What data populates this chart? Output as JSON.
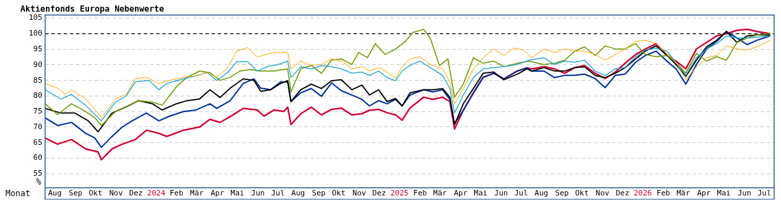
{
  "chart_data": {
    "type": "line",
    "title": "Aktienfonds Europa Nebenwerte",
    "xlabel": "Monat",
    "ylabel": "%",
    "ylim": [
      50.5,
      106
    ],
    "yticks": [
      55,
      60,
      65,
      70,
      75,
      80,
      85,
      90,
      95,
      100,
      105
    ],
    "xlim": [
      "2023-08-01",
      "2026-07-31"
    ],
    "xticks": [
      {
        "value": "2023-08-16",
        "label": "Aug"
      },
      {
        "value": "2023-09-16",
        "label": "Sep"
      },
      {
        "value": "2023-10-16",
        "label": "Okt"
      },
      {
        "value": "2023-11-16",
        "label": "Nov"
      },
      {
        "value": "2023-12-16",
        "label": "Dez"
      },
      {
        "value": "2024-01-16",
        "label": "2024"
      },
      {
        "value": "2024-02-15",
        "label": "Feb"
      },
      {
        "value": "2024-03-16",
        "label": "Mär"
      },
      {
        "value": "2024-04-16",
        "label": "Apr"
      },
      {
        "value": "2024-05-16",
        "label": "Mai"
      },
      {
        "value": "2024-06-16",
        "label": "Jun"
      },
      {
        "value": "2024-07-16",
        "label": "Jul"
      },
      {
        "value": "2024-08-16",
        "label": "Aug"
      },
      {
        "value": "2024-09-16",
        "label": "Sep"
      },
      {
        "value": "2024-10-16",
        "label": "Okt"
      },
      {
        "value": "2024-11-16",
        "label": "Nov"
      },
      {
        "value": "2024-12-16",
        "label": "Dez"
      },
      {
        "value": "2025-01-16",
        "label": "2025"
      },
      {
        "value": "2025-02-15",
        "label": "Feb"
      },
      {
        "value": "2025-03-16",
        "label": "Mär"
      },
      {
        "value": "2025-04-16",
        "label": "Apr"
      },
      {
        "value": "2025-05-16",
        "label": "Mai"
      },
      {
        "value": "2025-06-16",
        "label": "Jun"
      },
      {
        "value": "2025-07-16",
        "label": "Jul"
      },
      {
        "value": "2025-08-16",
        "label": "Aug"
      },
      {
        "value": "2025-09-16",
        "label": "Sep"
      },
      {
        "value": "2025-10-16",
        "label": "Okt"
      },
      {
        "value": "2025-11-16",
        "label": "Nov"
      },
      {
        "value": "2025-12-16",
        "label": "Dez"
      },
      {
        "value": "2026-01-16",
        "label": "2026"
      },
      {
        "value": "2026-02-15",
        "label": "Feb"
      },
      {
        "value": "2026-03-16",
        "label": "Mär"
      },
      {
        "value": "2026-04-16",
        "label": "Apr"
      },
      {
        "value": "2026-05-16",
        "label": "Mai"
      },
      {
        "value": "2026-06-16",
        "label": "Jun"
      },
      {
        "value": "2026-07-16",
        "label": "Jul"
      }
    ],
    "grid": "y",
    "legend": false,
    "line_style": "solid",
    "ref_lines": [
      {
        "axis": "y",
        "value": 100,
        "color": "#000000",
        "line_style": "dashed"
      }
    ],
    "series": [
      {
        "color": "#ffa500",
        "x": [
          "2023-08-01",
          "2023-08-20",
          "2023-09-01",
          "2023-09-10",
          "2023-10-01",
          "2023-10-10",
          "2023-10-25",
          "2023-11-05",
          "2023-11-15",
          "2023-12-01",
          "2023-12-15",
          "2024-01-01",
          "2024-01-20",
          "2024-02-05",
          "2024-02-25",
          "2024-03-15",
          "2024-04-01",
          "2024-04-15",
          "2024-05-01",
          "2024-05-15",
          "2024-06-01",
          "2024-06-15",
          "2024-07-01",
          "2024-07-15",
          "2024-07-31",
          "2024-08-05",
          "2024-08-20",
          "2024-09-05",
          "2024-09-20",
          "2024-10-05",
          "2024-10-20",
          "2024-11-05",
          "2024-11-20",
          "2024-12-01",
          "2024-12-15",
          "2024-12-28",
          "2025-01-10",
          "2025-01-20",
          "2025-02-01",
          "2025-02-15",
          "2025-03-01",
          "2025-03-20",
          "2025-03-31",
          "2025-04-07",
          "2025-04-20",
          "2025-05-05",
          "2025-05-20",
          "2025-06-05",
          "2025-06-20",
          "2025-07-05",
          "2025-07-20",
          "2025-08-01",
          "2025-08-20",
          "2025-09-05",
          "2025-09-20",
          "2025-10-05",
          "2025-10-20",
          "2025-11-05",
          "2025-11-20",
          "2025-12-05",
          "2025-12-20",
          "2026-01-05",
          "2026-01-20",
          "2026-02-05",
          "2026-02-20",
          "2026-03-05",
          "2026-03-20",
          "2026-04-05",
          "2026-04-20",
          "2026-05-05",
          "2026-05-20",
          "2026-06-05",
          "2026-06-20",
          "2026-07-05",
          "2026-07-25"
        ],
        "values": [
          84,
          82.5,
          80.5,
          82,
          79,
          77,
          73,
          76,
          79,
          80.5,
          85.5,
          86,
          84,
          85,
          86,
          86.5,
          87.5,
          86,
          89,
          94.5,
          95.5,
          92.5,
          93.5,
          94,
          94,
          88.7,
          91.2,
          89.8,
          90.1,
          91.9,
          91.2,
          88.7,
          89.4,
          88,
          89.1,
          87.7,
          85.6,
          89.4,
          91.9,
          92.6,
          90.1,
          88.7,
          84.5,
          77.5,
          82.4,
          88.7,
          92.3,
          95.1,
          93,
          95.4,
          94.7,
          92.3,
          95.1,
          94,
          95.1,
          94.4,
          94.4,
          93.3,
          91.5,
          93.3,
          95.1,
          97.5,
          97.9,
          96.8,
          93.7,
          90.8,
          85.2,
          89.4,
          92.3,
          93,
          96.1,
          95.1,
          94.7,
          95.8,
          97.9
        ]
      },
      {
        "color": "#1a9fd0",
        "x": [
          "2023-08-01",
          "2023-08-25",
          "2023-09-10",
          "2023-10-01",
          "2023-10-25",
          "2023-11-15",
          "2023-12-01",
          "2023-12-15",
          "2024-01-05",
          "2024-01-20",
          "2024-02-01",
          "2024-02-25",
          "2024-03-15",
          "2024-04-01",
          "2024-04-15",
          "2024-05-01",
          "2024-05-15",
          "2024-06-01",
          "2024-06-15",
          "2024-07-01",
          "2024-07-15",
          "2024-07-31",
          "2024-08-05",
          "2024-08-20",
          "2024-09-05",
          "2024-09-20",
          "2024-10-05",
          "2024-10-20",
          "2024-11-05",
          "2024-11-20",
          "2024-12-01",
          "2024-12-15",
          "2024-12-28",
          "2025-01-10",
          "2025-01-20",
          "2025-02-01",
          "2025-02-15",
          "2025-03-01",
          "2025-03-20",
          "2025-03-31",
          "2025-04-07",
          "2025-04-20",
          "2025-05-05",
          "2025-05-20",
          "2025-06-05",
          "2025-06-20",
          "2025-07-10",
          "2025-07-28",
          "2025-08-20",
          "2025-09-05",
          "2025-09-20",
          "2025-10-05",
          "2025-10-20",
          "2025-11-05",
          "2025-11-20",
          "2025-12-05",
          "2025-12-20",
          "2026-01-05",
          "2026-01-20",
          "2026-02-05",
          "2026-02-20",
          "2026-03-05",
          "2026-03-20",
          "2026-04-05",
          "2026-04-20",
          "2026-05-05",
          "2026-05-20",
          "2026-06-05",
          "2026-06-20",
          "2026-07-05",
          "2026-07-25"
        ],
        "values": [
          82,
          79,
          80.5,
          77,
          72,
          78,
          80,
          84.5,
          85,
          82,
          84,
          85.5,
          86.5,
          87.5,
          85,
          87.5,
          91,
          91,
          88,
          89.5,
          90,
          91.2,
          85.9,
          89.4,
          88.7,
          89.8,
          89.4,
          88.7,
          87.3,
          87.7,
          86.6,
          88,
          85.9,
          84.9,
          88,
          89.8,
          91.2,
          89.1,
          86.6,
          82.4,
          74.6,
          80.3,
          85.9,
          88.7,
          89.1,
          89.4,
          90.1,
          91.5,
          92.3,
          90.1,
          91.2,
          90.8,
          91.5,
          88,
          86.6,
          88.7,
          89.1,
          92.6,
          94.7,
          95.4,
          94.4,
          90.8,
          86.6,
          92.3,
          95.1,
          96.8,
          99.3,
          98.6,
          98.6,
          98.9,
          99.3
        ]
      },
      {
        "color": "#6b9a00",
        "x": [
          "2023-08-01",
          "2023-08-20",
          "2023-09-10",
          "2023-10-01",
          "2023-10-15",
          "2023-10-25",
          "2023-11-15",
          "2023-12-01",
          "2023-12-20",
          "2024-01-10",
          "2024-01-25",
          "2024-02-15",
          "2024-03-01",
          "2024-03-20",
          "2024-04-05",
          "2024-04-20",
          "2024-05-05",
          "2024-05-20",
          "2024-06-05",
          "2024-06-20",
          "2024-07-10",
          "2024-07-31",
          "2024-08-05",
          "2024-08-20",
          "2024-09-05",
          "2024-09-20",
          "2024-10-05",
          "2024-10-20",
          "2024-11-05",
          "2024-11-15",
          "2024-11-28",
          "2024-12-10",
          "2024-12-25",
          "2025-01-10",
          "2025-01-25",
          "2025-02-05",
          "2025-02-20",
          "2025-03-01",
          "2025-03-15",
          "2025-03-28",
          "2025-04-07",
          "2025-04-20",
          "2025-05-05",
          "2025-05-20",
          "2025-06-05",
          "2025-06-20",
          "2025-07-10",
          "2025-07-28",
          "2025-08-20",
          "2025-09-05",
          "2025-09-20",
          "2025-10-05",
          "2025-10-20",
          "2025-11-05",
          "2025-11-20",
          "2025-12-05",
          "2025-12-20",
          "2026-01-05",
          "2026-01-20",
          "2026-02-05",
          "2026-02-20",
          "2026-03-05",
          "2026-03-20",
          "2026-04-05",
          "2026-04-20",
          "2026-05-05",
          "2026-05-20",
          "2026-06-05",
          "2026-06-20",
          "2026-07-05",
          "2026-07-25"
        ],
        "values": [
          77.5,
          74,
          77.5,
          75,
          73,
          70.5,
          75,
          76.5,
          78.5,
          78,
          77,
          83,
          86,
          88,
          87.5,
          85,
          86,
          88,
          88.5,
          88,
          88,
          88.7,
          81.3,
          88.7,
          89.8,
          87.3,
          91.5,
          91.9,
          90.1,
          94,
          92.3,
          96.8,
          93.3,
          95.1,
          97.5,
          100.4,
          101.4,
          98.6,
          89.8,
          91.9,
          79.6,
          83.8,
          92.3,
          90.5,
          91.2,
          89.4,
          90.5,
          91.2,
          90.1,
          90.5,
          91.5,
          94.4,
          95.8,
          93,
          96.1,
          95.1,
          95.1,
          96.8,
          93.3,
          92.6,
          93,
          90.8,
          87.3,
          93.7,
          91.2,
          92.6,
          91.5,
          97.2,
          98.6,
          99.6,
          100
        ]
      },
      {
        "color": "#000000",
        "x": [
          "2023-08-01",
          "2023-08-25",
          "2023-09-15",
          "2023-10-05",
          "2023-10-20",
          "2023-11-10",
          "2023-12-01",
          "2023-12-20",
          "2024-01-10",
          "2024-01-25",
          "2024-02-15",
          "2024-03-01",
          "2024-03-20",
          "2024-04-05",
          "2024-04-20",
          "2024-05-05",
          "2024-05-25",
          "2024-06-10",
          "2024-06-20",
          "2024-07-05",
          "2024-07-20",
          "2024-07-31",
          "2024-08-05",
          "2024-08-20",
          "2024-09-05",
          "2024-09-20",
          "2024-10-05",
          "2024-10-20",
          "2024-11-05",
          "2024-11-20",
          "2024-12-01",
          "2024-12-15",
          "2024-12-28",
          "2025-01-10",
          "2025-01-20",
          "2025-02-01",
          "2025-02-20",
          "2025-03-05",
          "2025-03-20",
          "2025-03-31",
          "2025-04-07",
          "2025-04-20",
          "2025-05-05",
          "2025-05-20",
          "2025-06-05",
          "2025-06-20",
          "2025-07-10",
          "2025-07-25",
          "2025-08-01",
          "2025-08-20",
          "2025-09-05",
          "2025-09-20",
          "2025-10-05",
          "2025-10-20",
          "2025-11-05",
          "2025-11-20",
          "2025-12-05",
          "2025-12-20",
          "2026-01-05",
          "2026-01-20",
          "2026-02-05",
          "2026-02-20",
          "2026-03-05",
          "2026-03-20",
          "2026-04-05",
          "2026-04-20",
          "2026-05-05",
          "2026-05-20",
          "2026-06-05",
          "2026-06-20",
          "2026-07-05",
          "2026-07-25"
        ],
        "values": [
          76,
          74.5,
          74.5,
          72,
          68.5,
          74.5,
          76.5,
          78.5,
          77.5,
          75.5,
          77.5,
          78.5,
          79,
          82,
          79.5,
          82.5,
          85.5,
          85,
          81.5,
          82,
          84,
          84.9,
          78.2,
          82,
          83.8,
          82.4,
          84.9,
          85.2,
          82,
          83.5,
          80.3,
          82,
          78.2,
          79.2,
          76.8,
          81,
          82,
          82,
          82.4,
          79.6,
          70.8,
          77.5,
          82.4,
          87.3,
          87.7,
          85.2,
          87,
          88.7,
          88,
          89.1,
          88,
          88,
          89.1,
          89.4,
          86.6,
          85.9,
          87.3,
          89.1,
          91.9,
          94.4,
          96.1,
          93,
          90.1,
          86.3,
          91.5,
          95.8,
          97.9,
          100.7,
          97.2,
          99.3,
          99.6,
          99.6
        ]
      },
      {
        "color": "#003399",
        "x": [
          "2023-08-01",
          "2023-08-20",
          "2023-09-10",
          "2023-10-01",
          "2023-10-15",
          "2023-10-25",
          "2023-11-10",
          "2023-11-25",
          "2023-12-10",
          "2024-01-01",
          "2024-01-20",
          "2024-02-05",
          "2024-02-25",
          "2024-03-15",
          "2024-04-05",
          "2024-04-15",
          "2024-05-05",
          "2024-05-25",
          "2024-06-10",
          "2024-06-20",
          "2024-07-05",
          "2024-07-20",
          "2024-07-31",
          "2024-08-05",
          "2024-08-20",
          "2024-09-05",
          "2024-09-20",
          "2024-10-05",
          "2024-10-20",
          "2024-11-05",
          "2024-11-20",
          "2024-12-01",
          "2024-12-15",
          "2024-12-28",
          "2025-01-10",
          "2025-01-20",
          "2025-02-01",
          "2025-02-20",
          "2025-03-05",
          "2025-03-20",
          "2025-03-31",
          "2025-04-07",
          "2025-04-20",
          "2025-05-05",
          "2025-05-20",
          "2025-06-05",
          "2025-06-20",
          "2025-07-10",
          "2025-07-25",
          "2025-08-01",
          "2025-08-20",
          "2025-09-05",
          "2025-09-20",
          "2025-10-05",
          "2025-10-20",
          "2025-11-05",
          "2025-11-20",
          "2025-12-05",
          "2025-12-20",
          "2026-01-05",
          "2026-01-20",
          "2026-02-05",
          "2026-02-20",
          "2026-03-05",
          "2026-03-20",
          "2026-04-05",
          "2026-04-20",
          "2026-05-05",
          "2026-05-20",
          "2026-06-05",
          "2026-06-20",
          "2026-07-05",
          "2026-07-25"
        ],
        "values": [
          73,
          70.5,
          71.5,
          68,
          66.5,
          63.5,
          67,
          70,
          72,
          74.5,
          72,
          73.5,
          75,
          75.5,
          77.5,
          76,
          78.5,
          84,
          85.5,
          82.5,
          82,
          84.5,
          84.5,
          78.2,
          81,
          82.4,
          79.9,
          84.2,
          81.7,
          80.3,
          78.9,
          76.8,
          78.5,
          77.5,
          78.9,
          76.8,
          80.3,
          82,
          81.3,
          82,
          78.9,
          71.1,
          75.4,
          81,
          86,
          87.3,
          85.5,
          88,
          89,
          88,
          88,
          85.9,
          86.6,
          86.6,
          87,
          85.6,
          82.7,
          86.6,
          87,
          90.8,
          93,
          94.4,
          91.2,
          88.7,
          83.8,
          90.1,
          95.1,
          97.5,
          100.7,
          98.6,
          96.5,
          97.9,
          99.3
        ]
      },
      {
        "color": "#cc0033",
        "x": [
          "2023-08-01",
          "2023-08-20",
          "2023-09-10",
          "2023-10-01",
          "2023-10-20",
          "2023-10-25",
          "2023-11-10",
          "2023-11-25",
          "2023-12-15",
          "2024-01-01",
          "2024-01-20",
          "2024-02-01",
          "2024-02-25",
          "2024-03-20",
          "2024-04-05",
          "2024-04-20",
          "2024-05-10",
          "2024-05-25",
          "2024-06-15",
          "2024-06-25",
          "2024-07-10",
          "2024-07-25",
          "2024-07-31",
          "2024-08-05",
          "2024-08-20",
          "2024-09-05",
          "2024-09-20",
          "2024-10-05",
          "2024-10-20",
          "2024-11-05",
          "2024-11-20",
          "2024-12-01",
          "2024-12-15",
          "2024-12-28",
          "2025-01-10",
          "2025-01-20",
          "2025-02-01",
          "2025-02-20",
          "2025-03-05",
          "2025-03-20",
          "2025-03-31",
          "2025-04-07",
          "2025-04-20",
          "2025-05-05",
          "2025-05-20",
          "2025-06-05",
          "2025-06-20",
          "2025-07-10",
          "2025-07-25",
          "2025-08-01",
          "2025-08-20",
          "2025-09-05",
          "2025-09-20",
          "2025-10-05",
          "2025-10-20",
          "2025-11-05",
          "2025-11-20",
          "2025-12-05",
          "2025-12-20",
          "2026-01-05",
          "2026-01-20",
          "2026-02-05",
          "2026-02-20",
          "2026-03-05",
          "2026-03-20",
          "2026-04-05",
          "2026-04-20",
          "2026-05-05",
          "2026-05-20",
          "2026-06-05",
          "2026-06-20",
          "2026-07-05",
          "2026-07-25"
        ],
        "values": [
          66.5,
          64.5,
          66,
          63,
          62,
          59.5,
          63,
          64.5,
          66,
          69,
          68,
          67,
          69,
          70,
          72.5,
          71.5,
          74,
          76,
          75.5,
          73.5,
          75.5,
          75,
          76.4,
          70.8,
          74.3,
          76.4,
          73.9,
          75.7,
          76.1,
          73.9,
          74.3,
          75.4,
          75.7,
          74.6,
          73.9,
          72.2,
          76.1,
          79.6,
          78.9,
          79.6,
          78.2,
          69.4,
          75.4,
          81,
          86,
          87.3,
          85.5,
          88,
          89,
          88.7,
          89.4,
          88.7,
          87.3,
          89.1,
          89.8,
          87.3,
          85.6,
          87.7,
          90.5,
          93.3,
          95.1,
          96.8,
          93,
          91.2,
          88.7,
          95.1,
          97.2,
          99.3,
          100,
          101.1,
          101.4,
          100.7,
          100
        ]
      }
    ]
  }
}
